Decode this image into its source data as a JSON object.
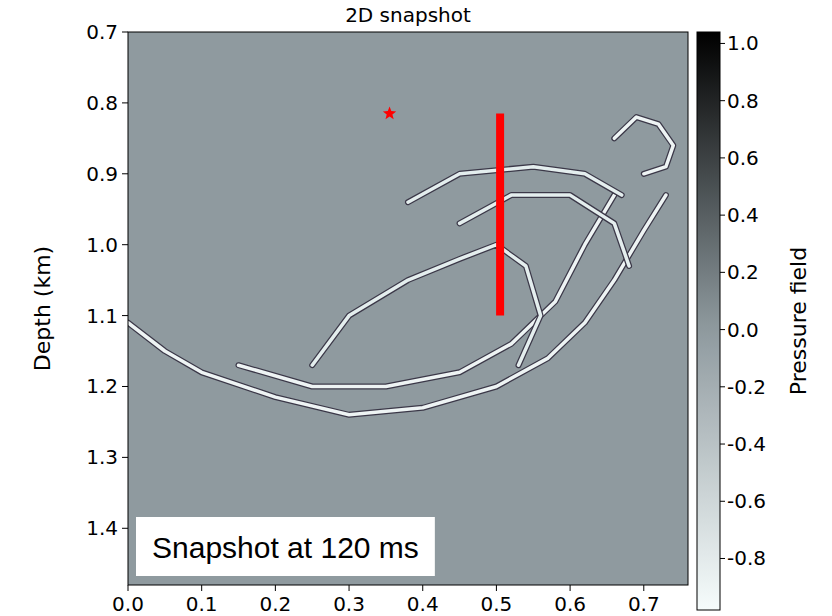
{
  "chart_data": {
    "type": "snapshot",
    "title": "2D snapshot",
    "ylabel": "Depth (km)",
    "xlim": [
      0,
      0.76
    ],
    "ylim": [
      0.7,
      1.48
    ],
    "xticks": [
      {
        "value": 0,
        "label": "0.0"
      },
      0.1,
      0.2,
      0.3,
      0.4,
      0.5,
      0.6,
      0.7
    ],
    "yticks": [
      0.7,
      0.8,
      0.9,
      {
        "value": 1,
        "label": "1.0"
      },
      1.1,
      1.2,
      1.3,
      1.4
    ],
    "colorbar": {
      "label": "Pressure field",
      "range": [
        -0.98,
        1.04
      ],
      "ticks": [
        {
          "value": 1,
          "label": "1.0"
        },
        0.8,
        0.6,
        0.4,
        0.2,
        {
          "value": 0,
          "label": "0.0"
        },
        -0.2,
        -0.4,
        -0.6,
        -0.8
      ]
    },
    "annotations": [
      "Snapshot at 120 ms"
    ],
    "series": [
      {
        "type": "line",
        "color": "#eef4f4",
        "x": [
          0.0,
          0.05,
          0.1,
          0.2,
          0.3,
          0.4,
          0.5,
          0.57,
          0.62,
          0.66,
          0.7,
          0.73
        ],
        "y": [
          1.11,
          1.15,
          1.18,
          1.215,
          1.24,
          1.23,
          1.2,
          1.16,
          1.11,
          1.05,
          0.98,
          0.93
        ]
      },
      {
        "type": "line",
        "color": "#eef4f4",
        "x": [
          0.15,
          0.25,
          0.35,
          0.45,
          0.52,
          0.58,
          0.62,
          0.66
        ],
        "y": [
          1.17,
          1.2,
          1.2,
          1.18,
          1.14,
          1.08,
          1.0,
          0.93
        ]
      },
      {
        "type": "line",
        "color": "#e4eeee",
        "x": [
          0.25,
          0.3,
          0.38,
          0.45,
          0.5,
          0.54,
          0.56,
          0.53
        ],
        "y": [
          1.17,
          1.1,
          1.05,
          1.02,
          1.0,
          1.03,
          1.1,
          1.17
        ]
      },
      {
        "type": "line",
        "color": "#e4eeee",
        "x": [
          0.38,
          0.45,
          0.55,
          0.62,
          0.67
        ],
        "y": [
          0.94,
          0.9,
          0.89,
          0.9,
          0.93
        ]
      },
      {
        "type": "line",
        "color": "#e4eeee",
        "x": [
          0.45,
          0.52,
          0.6,
          0.66,
          0.68
        ],
        "y": [
          0.97,
          0.93,
          0.93,
          0.97,
          1.03
        ]
      },
      {
        "type": "line",
        "color": "#eef4f4",
        "x": [
          0.66,
          0.69,
          0.72,
          0.74,
          0.73,
          0.7
        ],
        "y": [
          0.85,
          0.82,
          0.83,
          0.86,
          0.89,
          0.9
        ]
      },
      {
        "type": "line",
        "color": "#ff0000",
        "x": [
          0.505,
          0.505
        ],
        "y": [
          0.815,
          1.1
        ]
      },
      {
        "type": "scatter",
        "marker": "star",
        "color": "#ff0000",
        "x": [
          0.355
        ],
        "y": [
          0.815
        ]
      }
    ]
  }
}
